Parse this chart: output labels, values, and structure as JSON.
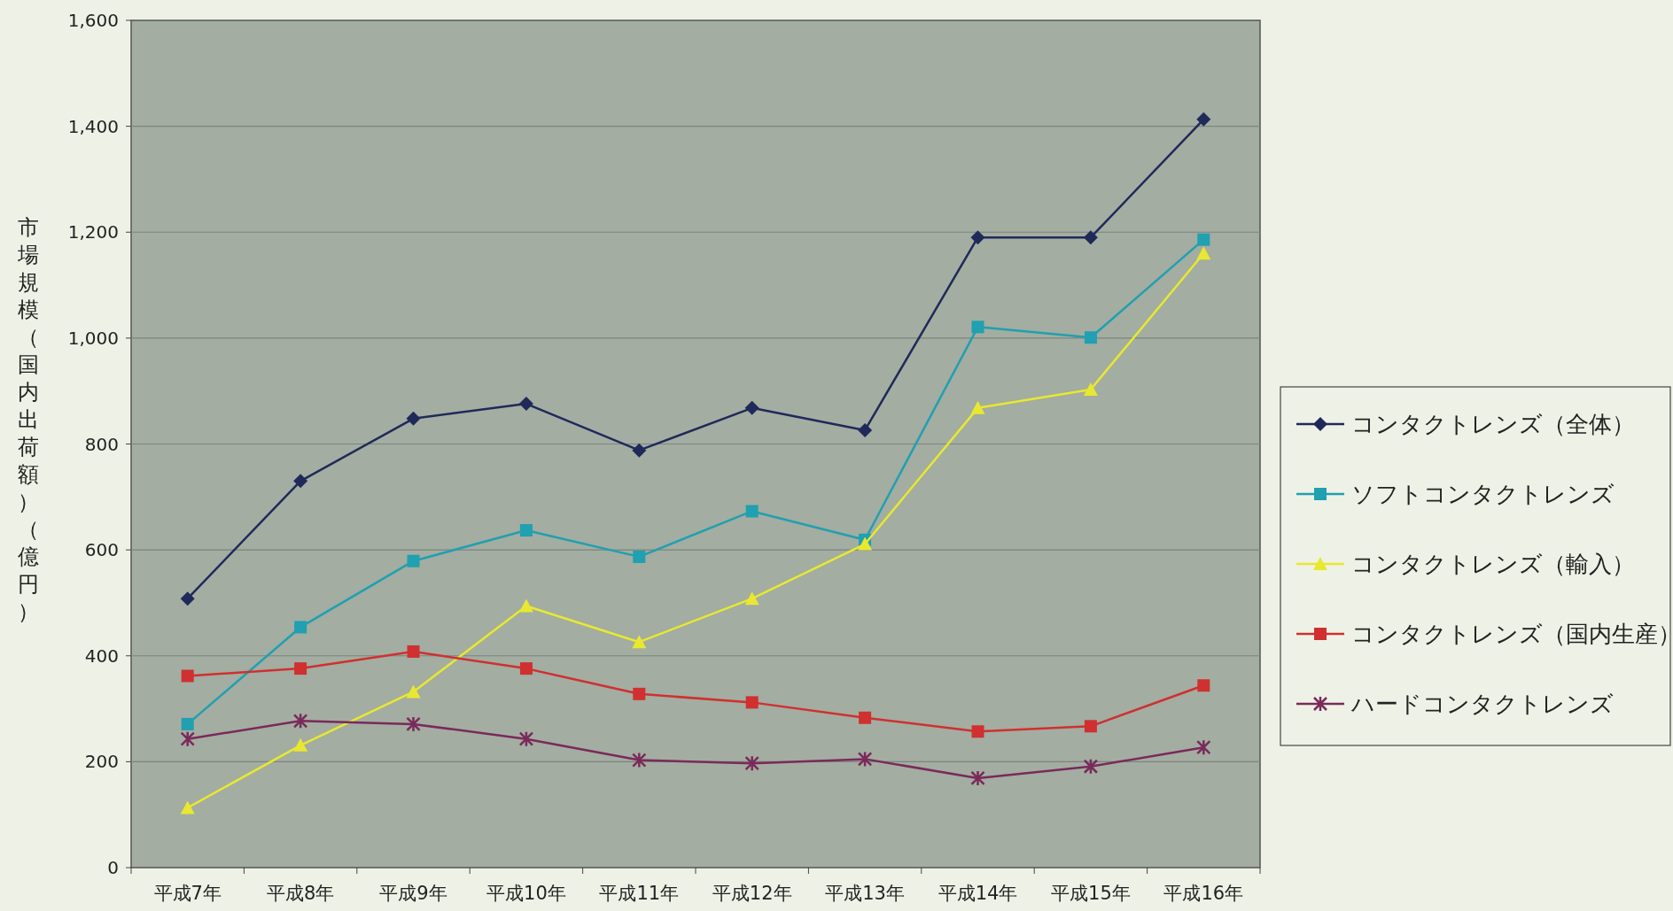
{
  "chart_data": {
    "type": "line",
    "ylabel": "市場規模（国内出荷額）（億円）",
    "categories": [
      "平成7年",
      "平成8年",
      "平成9年",
      "平成10年",
      "平成11年",
      "平成12年",
      "平成13年",
      "平成14年",
      "平成15年",
      "平成16年"
    ],
    "series": [
      {
        "name": "コンタクトレンズ（全体）",
        "color": "#1f2a5a",
        "marker": "diamond",
        "values": [
          508,
          730,
          848,
          876,
          788,
          868,
          826,
          1190,
          1190,
          1413
        ]
      },
      {
        "name": "ソフトコンタクトレンズ",
        "color": "#20a0b0",
        "marker": "square",
        "values": [
          271,
          454,
          579,
          637,
          587,
          673,
          619,
          1021,
          1001,
          1186
        ]
      },
      {
        "name": "コンタクトレンズ（輸入）",
        "color": "#e8e830",
        "marker": "triangle",
        "values": [
          113,
          231,
          332,
          494,
          426,
          508,
          611,
          868,
          903,
          1160
        ]
      },
      {
        "name": "コンタクトレンズ（国内生産）",
        "color": "#d03030",
        "marker": "square",
        "values": [
          362,
          376,
          408,
          376,
          328,
          312,
          283,
          257,
          267,
          344
        ]
      },
      {
        "name": "ハードコンタクトレンズ",
        "color": "#7a2a5a",
        "marker": "cross",
        "values": [
          243,
          277,
          271,
          243,
          203,
          197,
          205,
          169,
          191,
          227
        ]
      }
    ],
    "ylim": [
      0,
      1600
    ],
    "yticks": [
      0,
      {
        "value": 200,
        "label": "200"
      },
      {
        "value": 400,
        "label": "400"
      },
      {
        "value": 600,
        "label": "600"
      },
      {
        "value": 800,
        "label": "800"
      },
      {
        "value": 1000,
        "label": "1,000"
      },
      {
        "value": 1200,
        "label": "1,200"
      },
      {
        "value": 1400,
        "label": "1,400"
      },
      {
        "value": 1600,
        "label": "1,600"
      }
    ],
    "grid": "y",
    "legend": "right",
    "line_style": "solid"
  }
}
